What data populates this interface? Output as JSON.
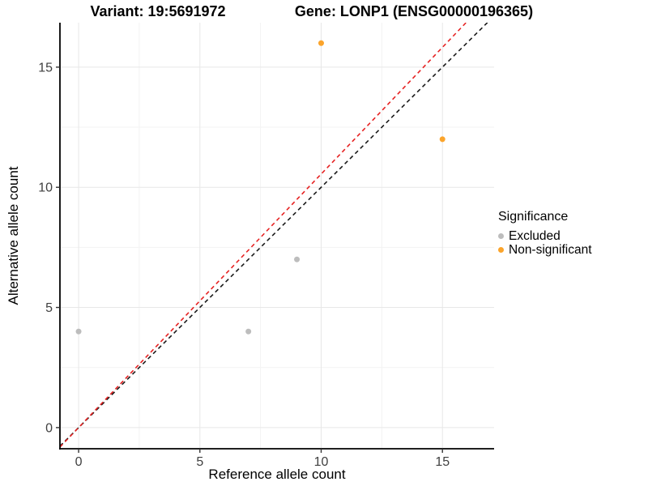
{
  "figure": {
    "title_left": "Variant: 19:5691972",
    "title_right": "Gene: LONP1 (ENSG00000196365)"
  },
  "axes": {
    "x_label": "Reference allele count",
    "y_label": "Alternative allele count"
  },
  "legend": {
    "title": "Significance",
    "items": [
      {
        "label": "Excluded",
        "color": "#BDBDBD"
      },
      {
        "label": "Non-significant",
        "color": "#FBA42B"
      }
    ]
  },
  "chart_data": {
    "type": "scatter",
    "title": "Variant: 19:5691972  /  Gene: LONP1 (ENSG00000196365)",
    "xlabel": "Reference allele count",
    "ylabel": "Alternative allele count",
    "xlim": [
      -0.77,
      17.13
    ],
    "ylim": [
      -0.88,
      16.85
    ],
    "x_ticks": [
      0,
      5,
      10,
      15
    ],
    "x_tick_labels": [
      "0",
      "5",
      "10",
      "15"
    ],
    "y_ticks": [
      0,
      5,
      10,
      15
    ],
    "y_tick_labels": [
      "0",
      "5",
      "10",
      "15"
    ],
    "x_minor_ticks": [
      2.5,
      7.5,
      12.5
    ],
    "y_minor_ticks": [
      2.5,
      7.5,
      12.5
    ],
    "grid": true,
    "legend_position": "right",
    "series": [
      {
        "name": "Excluded",
        "color": "#BDBDBD",
        "points": [
          [
            0,
            4
          ],
          [
            7,
            4
          ],
          [
            9,
            7
          ]
        ]
      },
      {
        "name": "Non-significant",
        "color": "#FBA42B",
        "points": [
          [
            10,
            16
          ],
          [
            15,
            12
          ]
        ]
      }
    ],
    "ablines": [
      {
        "name": "identity-line",
        "slope": 1.0,
        "intercept": 0,
        "color": "#1A1A1A",
        "style": "dashed"
      },
      {
        "name": "expected-ratio-line",
        "slope": 1.055,
        "intercept": 0,
        "color": "#E62222",
        "style": "dashed"
      }
    ],
    "style": {
      "grid_major_color": "#E7E7E7",
      "grid_minor_color": "#F3F3F3",
      "axis_color": "#000000",
      "tick_label_color": "#404040",
      "point_radius": 3.5
    }
  }
}
